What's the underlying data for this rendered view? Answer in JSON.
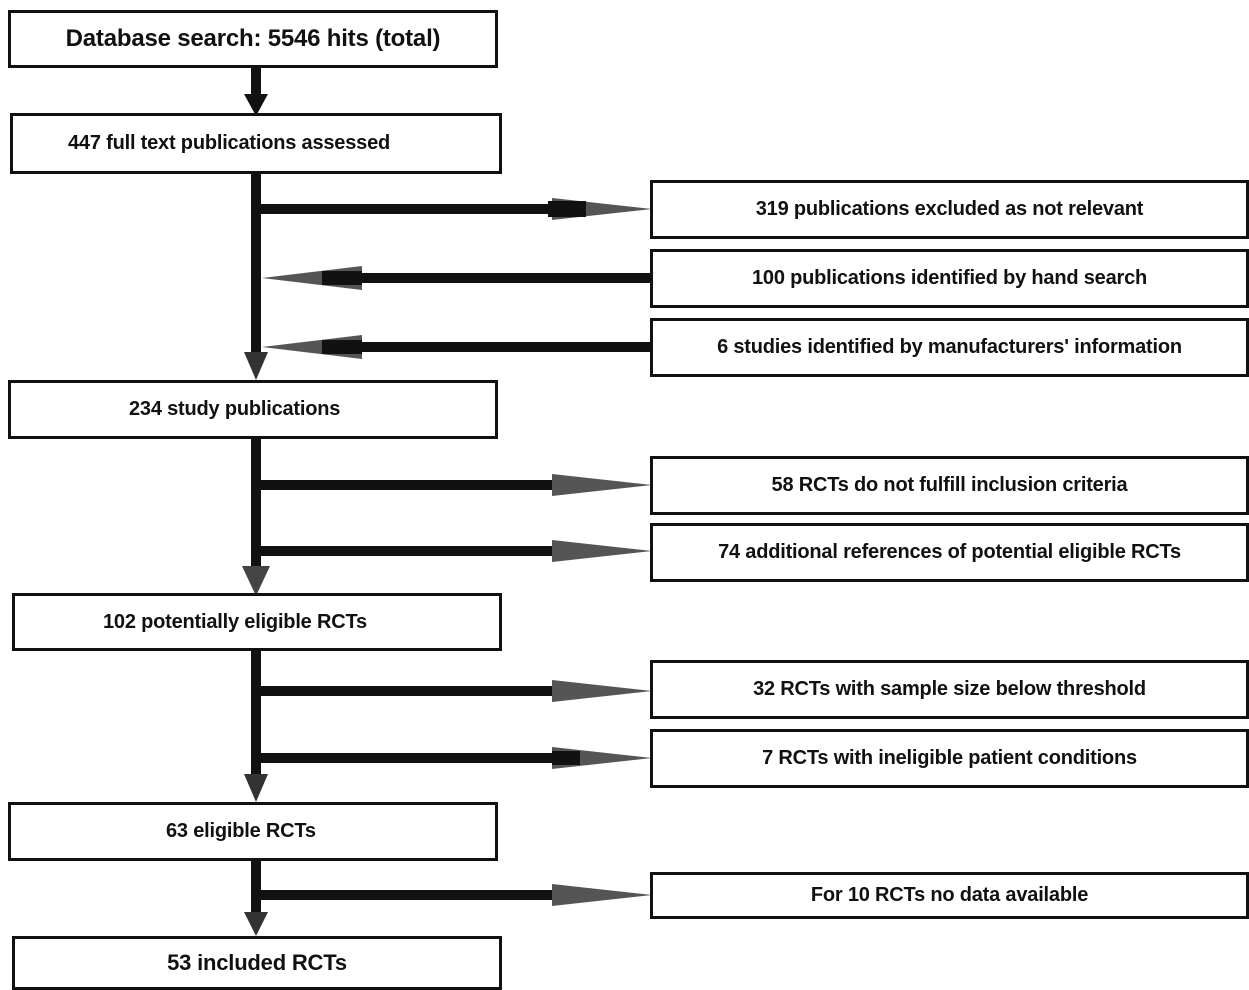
{
  "flow": {
    "start": "Database search: 5546 hits (total)",
    "assessed": "447 full text publications assessed",
    "study_pubs": "234 study publications",
    "potential": "102 potentially eligible RCTs",
    "eligible": "63 eligible RCTs",
    "included": "53 included RCTs"
  },
  "side": {
    "excluded_not_relevant": "319 publications excluded as not relevant",
    "hand_search": "100 publications identified by hand search",
    "manufacturers": "6 studies identified by manufacturers' information",
    "not_fulfill": "58 RCTs do not fulfill inclusion criteria",
    "additional_refs": "74  additional references of potential eligible RCTs",
    "sample_size": "32 RCTs with sample size below threshold",
    "ineligible_conditions": "7 RCTs with ineligible patient conditions",
    "no_data": "For 10 RCTs no data available"
  },
  "colors": {
    "line": "#111111",
    "arrowhead": "#555555",
    "box_border": "#111111",
    "background": "#ffffff"
  }
}
